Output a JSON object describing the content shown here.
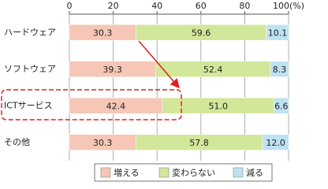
{
  "chart_data": {
    "type": "stacked-bar-horizontal",
    "categories": [
      "ハードウェア",
      "ソフトウェア",
      "ICTサービス",
      "その他"
    ],
    "series": [
      {
        "name": "増える",
        "color": "#f6c7b6",
        "values": [
          30.3,
          39.3,
          42.4,
          30.3
        ],
        "value_labels": [
          "30.3",
          "39.3",
          "42.4",
          "30.3"
        ]
      },
      {
        "name": "変わらない",
        "color": "#d3e79a",
        "values": [
          59.6,
          52.4,
          51.0,
          57.8
        ],
        "value_labels": [
          "59.6",
          "52.4",
          "51.0",
          "57.8"
        ]
      },
      {
        "name": "減る",
        "color": "#bfe2f3",
        "values": [
          10.1,
          8.3,
          6.6,
          12.0
        ],
        "value_labels": [
          "10.1",
          "8.3",
          "6.6",
          "12.0"
        ]
      }
    ],
    "xlim": [
      0,
      100
    ],
    "xticks": [
      0,
      20,
      40,
      60,
      80,
      {
        "value": 100,
        "label": "100(%)"
      }
    ],
    "grid": true
  }
}
